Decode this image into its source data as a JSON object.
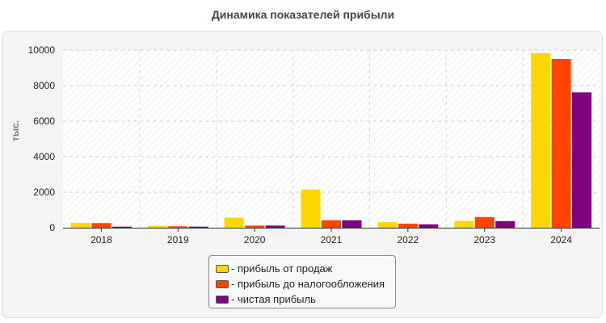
{
  "chart_data": {
    "type": "bar",
    "title": "Динамика показателей прибыли",
    "xlabel": "",
    "ylabel": "тыс.",
    "ylim": [
      0,
      10000
    ],
    "yticks": [
      0,
      2000,
      4000,
      6000,
      8000,
      10000
    ],
    "grid": true,
    "legend_position": "bottom",
    "categories": [
      "2018",
      "2019",
      "2020",
      "2021",
      "2022",
      "2023",
      "2024"
    ],
    "series": [
      {
        "name": "прибыль от продаж",
        "color": "#FFD700",
        "values": [
          270,
          110,
          560,
          2150,
          310,
          380,
          9830
        ]
      },
      {
        "name": "прибыль до налогообложения",
        "color": "#FF4500",
        "values": [
          260,
          80,
          120,
          420,
          230,
          600,
          9500
        ]
      },
      {
        "name": "чистая прибыль",
        "color": "#800080",
        "values": [
          60,
          60,
          120,
          420,
          190,
          370,
          7620
        ]
      }
    ]
  }
}
